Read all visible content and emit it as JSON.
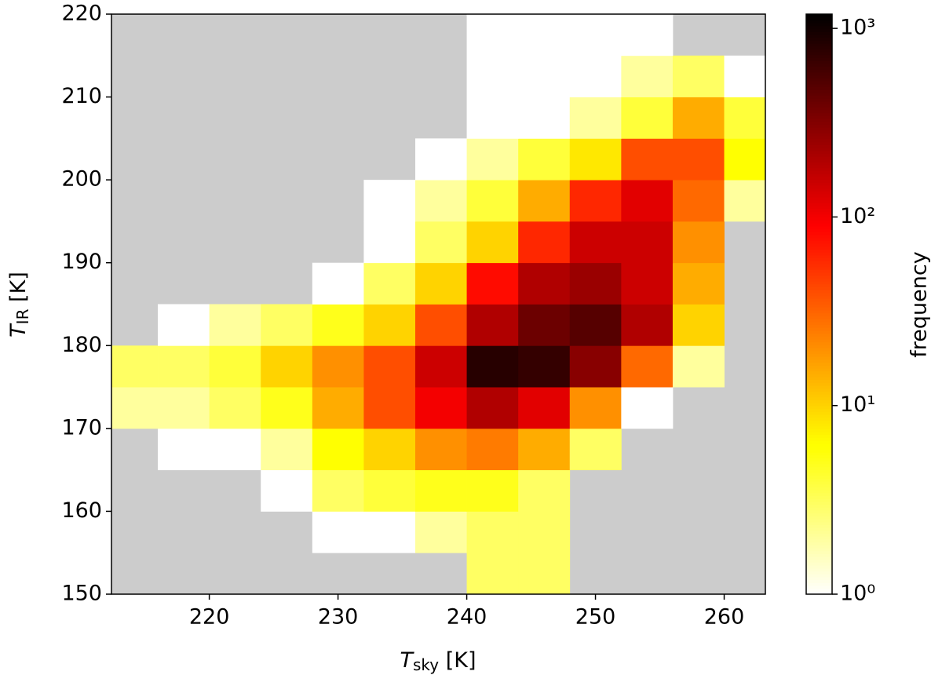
{
  "chart_data": {
    "type": "hist2d",
    "xlabel": [
      "T",
      "sky",
      " [K]"
    ],
    "ylabel": [
      "T",
      "IR",
      " [K]"
    ],
    "colorbar_label": "frequency",
    "background": "#cccccc",
    "colormap": "hot_r",
    "color_scale": "log",
    "xlim": [
      212.4,
      263.2
    ],
    "ylim": [
      150,
      220
    ],
    "xticks": [
      220,
      230,
      240,
      250,
      260
    ],
    "yticks": [
      150,
      160,
      170,
      180,
      190,
      200,
      210,
      220
    ],
    "clim": [
      1,
      1190
    ],
    "cticks": [
      {
        "value": 1,
        "label": "10⁰"
      },
      {
        "value": 10,
        "label": "10¹"
      },
      {
        "value": 100,
        "label": "10²"
      },
      {
        "value": 1000,
        "label": "10³"
      }
    ],
    "x_edges": [
      212.4,
      216,
      220,
      224,
      228,
      232,
      236,
      240,
      244,
      248,
      252,
      256,
      260,
      263.2
    ],
    "y_edges": [
      150,
      155,
      160,
      165,
      170,
      175,
      180,
      185,
      190,
      195,
      200,
      205,
      210,
      215,
      220
    ],
    "counts": [
      [
        null,
        null,
        null,
        null,
        null,
        null,
        null,
        3,
        3,
        null,
        null,
        null,
        null
      ],
      [
        null,
        null,
        null,
        null,
        1,
        1,
        2,
        3,
        3,
        null,
        null,
        null,
        null
      ],
      [
        null,
        null,
        null,
        1,
        3,
        4,
        5,
        5,
        3,
        null,
        null,
        null,
        null
      ],
      [
        null,
        1,
        1,
        2,
        6,
        10,
        20,
        25,
        15,
        3,
        null,
        null,
        null
      ],
      [
        2,
        2,
        3,
        5,
        15,
        40,
        100,
        200,
        120,
        20,
        1,
        null,
        null
      ],
      [
        3,
        3,
        4,
        10,
        20,
        40,
        150,
        800,
        700,
        300,
        30,
        2,
        null
      ],
      [
        null,
        1,
        2,
        3,
        5,
        10,
        40,
        200,
        400,
        500,
        200,
        10,
        null
      ],
      [
        null,
        null,
        null,
        null,
        1,
        3,
        10,
        80,
        200,
        250,
        150,
        15,
        null
      ],
      [
        null,
        null,
        null,
        null,
        null,
        1,
        3,
        10,
        60,
        150,
        150,
        20,
        null
      ],
      [
        null,
        null,
        null,
        null,
        null,
        1,
        2,
        4,
        15,
        60,
        120,
        30,
        2
      ],
      [
        null,
        null,
        null,
        null,
        null,
        null,
        1,
        2,
        4,
        8,
        40,
        40,
        6
      ],
      [
        null,
        null,
        null,
        null,
        null,
        null,
        null,
        1,
        1,
        2,
        4,
        15,
        4
      ],
      [
        null,
        null,
        null,
        null,
        null,
        null,
        null,
        1,
        1,
        1,
        2,
        3,
        1
      ],
      [
        null,
        null,
        null,
        null,
        null,
        null,
        null,
        1,
        1,
        1,
        1,
        null,
        null
      ]
    ]
  }
}
